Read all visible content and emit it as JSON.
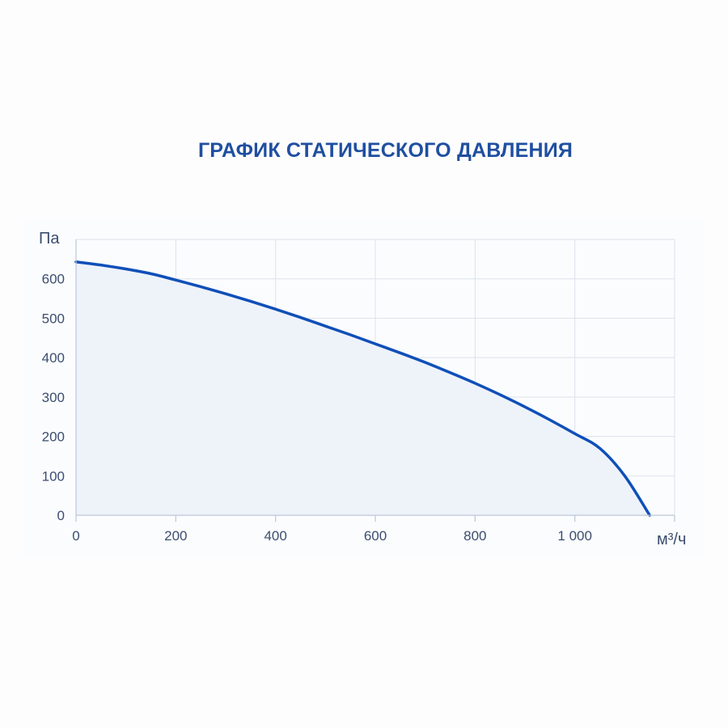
{
  "chart_data": {
    "type": "area",
    "title": "ГРАФИК СТАТИЧЕСКОГО ДАВЛЕНИЯ",
    "xlabel": "м³/ч",
    "ylabel": "Па",
    "xlim": [
      0,
      1200
    ],
    "ylim": [
      0,
      700
    ],
    "x_ticks": [
      0,
      200,
      400,
      600,
      800,
      1000
    ],
    "x_tick_labels": [
      "0",
      "200",
      "400",
      "600",
      "800",
      "1 000"
    ],
    "y_ticks": [
      0,
      100,
      200,
      300,
      400,
      500,
      600
    ],
    "y_tick_labels": [
      "0",
      "100",
      "200",
      "300",
      "400",
      "500",
      "600"
    ],
    "grid": true,
    "colors": {
      "line": "#0f4fb8",
      "fill": "#eef3fa",
      "grid": "#dde2ea",
      "axis": "#bcc7d8",
      "title": "#1f4fa0"
    },
    "series": [
      {
        "x": [
          0,
          50,
          100,
          150,
          200,
          250,
          300,
          350,
          400,
          450,
          500,
          550,
          600,
          650,
          700,
          750,
          800,
          850,
          900,
          950,
          1000,
          1050,
          1100,
          1150
        ],
        "values": [
          643,
          635,
          625,
          613,
          597,
          580,
          562,
          543,
          523,
          502,
          480,
          458,
          435,
          412,
          388,
          362,
          335,
          306,
          275,
          242,
          207,
          170,
          100,
          0
        ]
      }
    ]
  }
}
